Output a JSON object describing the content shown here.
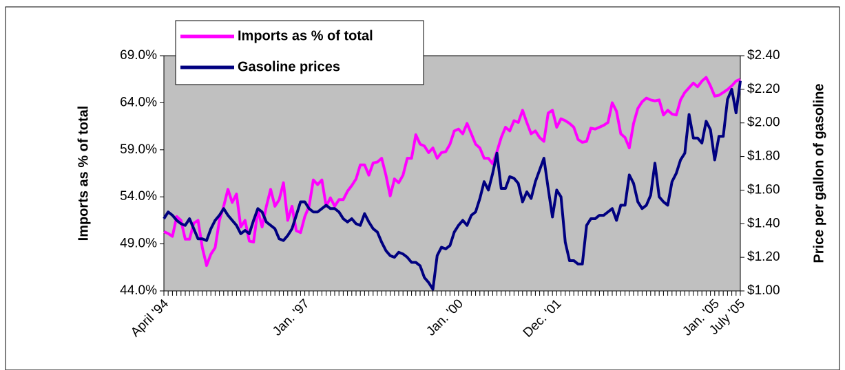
{
  "chart_data": {
    "type": "line",
    "y_label": "Imports as % of total",
    "y2_label": "Price per gallon of gasoline",
    "categories": [
      "April '94",
      null,
      null,
      null,
      null,
      null,
      null,
      null,
      null,
      null,
      null,
      null,
      null,
      null,
      null,
      null,
      null,
      null,
      null,
      null,
      null,
      null,
      null,
      null,
      null,
      null,
      null,
      null,
      null,
      null,
      null,
      null,
      null,
      "Jan. '97",
      null,
      null,
      null,
      null,
      null,
      null,
      null,
      null,
      null,
      null,
      null,
      null,
      null,
      null,
      null,
      null,
      null,
      null,
      null,
      null,
      null,
      null,
      null,
      null,
      null,
      null,
      null,
      null,
      null,
      null,
      null,
      null,
      null,
      null,
      null,
      "Jan. '00",
      null,
      null,
      null,
      null,
      null,
      null,
      null,
      null,
      null,
      null,
      null,
      null,
      null,
      null,
      null,
      null,
      null,
      null,
      null,
      null,
      null,
      null,
      "Dec. '01",
      null,
      null,
      null,
      null,
      null,
      null,
      null,
      null,
      null,
      null,
      null,
      null,
      null,
      null,
      null,
      null,
      null,
      null,
      null,
      null,
      null,
      null,
      null,
      null,
      null,
      null,
      null,
      null,
      null,
      null,
      null,
      null,
      null,
      null,
      null,
      null,
      "Jan. '05",
      null,
      null,
      null,
      null,
      null,
      "July '05"
    ],
    "series": [
      {
        "name": "Imports as % of total",
        "color": "#ff00ff",
        "values": [
          50.3,
          50.1,
          49.8,
          51.9,
          51.5,
          49.5,
          49.5,
          51.2,
          51.5,
          48.6,
          46.7,
          47.9,
          48.6,
          51.5,
          53.0,
          54.8,
          53.4,
          54.3,
          50.8,
          51.5,
          49.3,
          49.2,
          52.6,
          50.8,
          53.0,
          54.8,
          53.0,
          53.7,
          55.5,
          51.5,
          53.0,
          50.4,
          50.2,
          51.9,
          53.0,
          55.8,
          55.3,
          55.8,
          53.0,
          53.9,
          53.0,
          53.7,
          53.7,
          54.6,
          55.2,
          55.9,
          57.4,
          57.4,
          56.3,
          57.6,
          57.7,
          58.1,
          56.3,
          54.1,
          55.9,
          55.5,
          56.3,
          58.1,
          58.1,
          60.6,
          59.6,
          59.4,
          58.7,
          59.2,
          58.1,
          58.7,
          58.8,
          59.6,
          61.0,
          61.2,
          60.7,
          61.8,
          60.7,
          59.6,
          59.2,
          58.1,
          58.1,
          57.5,
          58.8,
          60.3,
          61.4,
          61.0,
          62.1,
          61.9,
          63.2,
          61.9,
          60.7,
          61.0,
          60.3,
          59.9,
          62.9,
          63.2,
          61.4,
          62.3,
          62.1,
          61.8,
          61.4,
          60.1,
          59.8,
          59.9,
          61.3,
          61.2,
          61.4,
          61.6,
          61.9,
          64.0,
          63.1,
          60.7,
          60.3,
          59.2,
          61.8,
          63.4,
          64.1,
          64.5,
          64.3,
          64.2,
          64.3,
          62.7,
          63.2,
          62.8,
          62.7,
          64.3,
          65.1,
          65.6,
          66.1,
          65.7,
          66.3,
          66.7,
          65.8,
          64.7,
          64.8,
          65.1,
          65.4,
          65.8,
          66.3,
          66.5
        ]
      },
      {
        "name": "Gasoline prices",
        "color": "#000080",
        "axis": "y2",
        "values": [
          1.43,
          1.47,
          1.45,
          1.42,
          1.4,
          1.39,
          1.43,
          1.37,
          1.31,
          1.31,
          1.3,
          1.37,
          1.42,
          1.45,
          1.49,
          1.45,
          1.42,
          1.39,
          1.34,
          1.36,
          1.34,
          1.42,
          1.49,
          1.47,
          1.41,
          1.39,
          1.37,
          1.31,
          1.3,
          1.33,
          1.37,
          1.45,
          1.53,
          1.53,
          1.49,
          1.47,
          1.47,
          1.49,
          1.51,
          1.49,
          1.49,
          1.47,
          1.43,
          1.41,
          1.43,
          1.4,
          1.39,
          1.46,
          1.41,
          1.37,
          1.35,
          1.29,
          1.24,
          1.21,
          1.2,
          1.23,
          1.22,
          1.2,
          1.17,
          1.17,
          1.15,
          1.08,
          1.05,
          1.01,
          1.21,
          1.26,
          1.25,
          1.27,
          1.35,
          1.39,
          1.42,
          1.39,
          1.45,
          1.47,
          1.55,
          1.65,
          1.6,
          1.7,
          1.82,
          1.61,
          1.61,
          1.68,
          1.67,
          1.64,
          1.53,
          1.59,
          1.55,
          1.65,
          1.72,
          1.79,
          1.61,
          1.44,
          1.6,
          1.56,
          1.29,
          1.18,
          1.18,
          1.16,
          1.16,
          1.39,
          1.43,
          1.43,
          1.45,
          1.45,
          1.47,
          1.49,
          1.42,
          1.51,
          1.51,
          1.69,
          1.64,
          1.53,
          1.49,
          1.51,
          1.57,
          1.76,
          1.56,
          1.53,
          1.51,
          1.65,
          1.7,
          1.78,
          1.82,
          2.05,
          1.91,
          1.91,
          1.88,
          2.01,
          1.96,
          1.78,
          1.92,
          1.92,
          2.14,
          2.2,
          2.06,
          2.25
        ]
      }
    ],
    "ylim": [
      44,
      69
    ],
    "yticks": [
      {
        "value": 44,
        "label": "44.0%"
      },
      {
        "value": 49,
        "label": "49.0%"
      },
      {
        "value": 54,
        "label": "54.0%"
      },
      {
        "value": 59,
        "label": "59.0%"
      },
      {
        "value": 64,
        "label": "64.0%"
      },
      {
        "value": 69,
        "label": "69.0%"
      }
    ],
    "y2lim": [
      1.0,
      2.4
    ],
    "y2ticks": [
      {
        "value": 1.0,
        "label": "$1.00"
      },
      {
        "value": 1.2,
        "label": "$1.20"
      },
      {
        "value": 1.4,
        "label": "$1.40"
      },
      {
        "value": 1.6,
        "label": "$1.60"
      },
      {
        "value": 1.8,
        "label": "$1.80"
      },
      {
        "value": 2.0,
        "label": "$2.00"
      },
      {
        "value": 2.2,
        "label": "$2.20"
      },
      {
        "value": 2.4,
        "label": "$2.40"
      }
    ],
    "legend": "top-left",
    "plot_background": "#c0c0c0"
  }
}
